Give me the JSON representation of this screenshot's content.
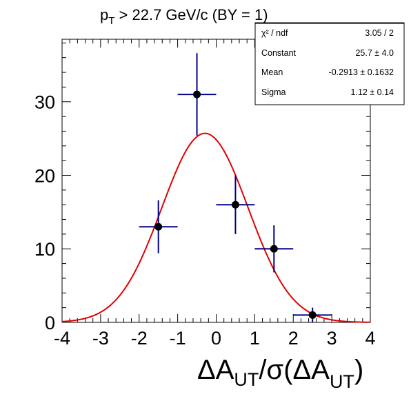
{
  "chart_data": {
    "type": "scatter",
    "title": {
      "main": "p",
      "sub": "T",
      "rest": " > 22.7 GeV/c (BY = 1)"
    },
    "xlabel": {
      "a": "ΔA",
      "a_sub": "UT",
      "b": "/σ(ΔA",
      "b_sub": "UT",
      "c": ")"
    },
    "ylabel": "",
    "xlim": [
      -4,
      4
    ],
    "ylim": [
      0,
      38.5
    ],
    "x_ticks": [
      -4,
      -3,
      -2,
      -1,
      0,
      1,
      2,
      3,
      4
    ],
    "y_ticks": [
      0,
      10,
      20,
      30
    ],
    "grid": false,
    "points": [
      {
        "x": -1.5,
        "y": 13,
        "xerr": 0.5,
        "yerr_low": 3.6,
        "yerr_high": 3.6
      },
      {
        "x": -0.5,
        "y": 31,
        "xerr": 0.5,
        "yerr_low": 5.6,
        "yerr_high": 5.6
      },
      {
        "x": 0.5,
        "y": 16,
        "xerr": 0.5,
        "yerr_low": 4.0,
        "yerr_high": 4.0
      },
      {
        "x": 1.5,
        "y": 10,
        "xerr": 0.5,
        "yerr_low": 3.2,
        "yerr_high": 3.2
      },
      {
        "x": 2.5,
        "y": 1,
        "xerr": 0.5,
        "yerr_low": 1.0,
        "yerr_high": 1.0
      }
    ],
    "fit": {
      "type": "gaussian",
      "constant": 25.7,
      "mean": -0.2913,
      "sigma": 1.12
    },
    "stats_box": {
      "rows": [
        {
          "label": "χ² / ndf",
          "value": "3.05 / 2"
        },
        {
          "label": "Constant",
          "value": "25.7 ± 4.0"
        },
        {
          "label": "Mean",
          "value": "-0.2913 ± 0.1632"
        },
        {
          "label": "Sigma",
          "value": "1.12 ± 0.14"
        }
      ]
    },
    "colors": {
      "markers": "#000000",
      "error_bars": "#00008b",
      "fit_line": "#e00000",
      "frame": "#000000"
    }
  }
}
